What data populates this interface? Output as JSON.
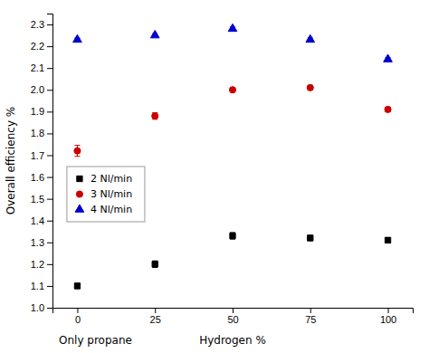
{
  "chart_data": {
    "type": "scatter",
    "ylabel": "Overall efficiency %",
    "xlabel": "Hydrogen %",
    "annotations": [
      "Only propane"
    ],
    "x": [
      0,
      25,
      50,
      75,
      100
    ],
    "xlim": [
      -8,
      108
    ],
    "xticks": [
      0,
      25,
      50,
      75,
      100
    ],
    "ylim": [
      1.0,
      2.35
    ],
    "yticks": [
      {
        "value": 1.0,
        "label": "1.0"
      },
      1.1,
      1.2,
      1.3,
      1.4,
      1.5,
      1.6,
      1.7,
      1.8,
      1.9,
      {
        "value": 2.0,
        "label": "2.0"
      },
      2.1,
      2.2,
      2.3
    ],
    "grid": false,
    "legend": "center left",
    "series": [
      {
        "name": "2 Nl/min",
        "color": "#000000",
        "marker": "square",
        "values": [
          1.1,
          1.2,
          1.33,
          1.32,
          1.31
        ],
        "errors": [
          0.012,
          0.015,
          0.015,
          0.012,
          0.012
        ]
      },
      {
        "name": "3 Nl/min",
        "color": "#cc0000",
        "marker": "circle",
        "values": [
          1.72,
          1.88,
          2.0,
          2.01,
          1.91
        ],
        "errors": [
          0.025,
          0.015,
          0.01,
          0.01,
          0.01
        ]
      },
      {
        "name": "4 Nl/min",
        "color": "#0000cc",
        "marker": "triangle-up",
        "values": [
          2.23,
          2.25,
          2.28,
          2.23,
          2.14
        ],
        "errors": [
          0.008,
          0.008,
          0.008,
          0.008,
          0.008
        ]
      }
    ]
  }
}
